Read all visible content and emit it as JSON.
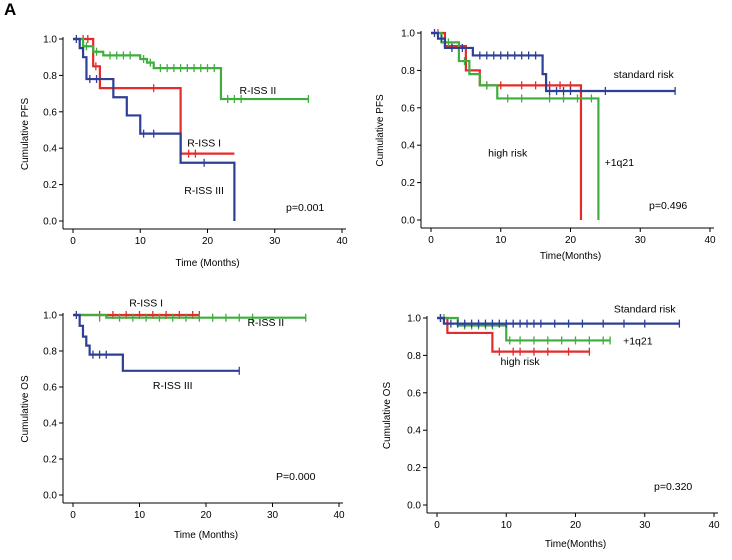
{
  "panel_label": "A",
  "colors": {
    "red": "#e32b2b",
    "green": "#3fae3f",
    "blue": "#2e3f96",
    "axis": "#000000"
  },
  "chart_data": [
    {
      "id": "pfs-riss",
      "type": "line",
      "step": true,
      "ylabel": "Cumulative PFS",
      "xlabel": "Time (Months)",
      "xlim": [
        0,
        40
      ],
      "ylim": [
        0,
        1
      ],
      "xticks": [
        0,
        10,
        20,
        30,
        40
      ],
      "yticks": [
        0.0,
        0.2,
        0.4,
        0.6,
        0.8,
        1.0
      ],
      "pvalue": "p=0.001",
      "series": [
        {
          "name": "R-ISS I",
          "color": "red",
          "x": [
            0,
            3,
            4,
            16,
            24
          ],
          "y": [
            1.0,
            0.85,
            0.73,
            0.37,
            0.37
          ],
          "end": 18.5,
          "censor": [
            [
              1.5,
              1.0
            ],
            [
              2.2,
              1.0
            ],
            [
              3.4,
              0.85
            ],
            [
              12,
              0.73
            ],
            [
              17.2,
              0.37
            ],
            [
              18.2,
              0.37
            ]
          ]
        },
        {
          "name": "R-ISS II",
          "color": "green",
          "x": [
            0,
            1.5,
            3,
            4.5,
            10,
            11,
            12,
            22
          ],
          "y": [
            1.0,
            0.96,
            0.93,
            0.91,
            0.89,
            0.87,
            0.84,
            0.67
          ],
          "end": 35,
          "censor": [
            [
              2,
              0.96
            ],
            [
              3.5,
              0.93
            ],
            [
              5.5,
              0.91
            ],
            [
              6.5,
              0.91
            ],
            [
              7.5,
              0.91
            ],
            [
              8.5,
              0.91
            ],
            [
              10.5,
              0.89
            ],
            [
              11.5,
              0.87
            ],
            [
              13,
              0.84
            ],
            [
              14,
              0.84
            ],
            [
              15,
              0.84
            ],
            [
              16,
              0.84
            ],
            [
              17,
              0.84
            ],
            [
              18,
              0.84
            ],
            [
              19,
              0.84
            ],
            [
              20,
              0.84
            ],
            [
              21,
              0.84
            ],
            [
              23,
              0.67
            ],
            [
              24,
              0.67
            ],
            [
              25,
              0.67
            ],
            [
              35,
              0.67
            ]
          ]
        },
        {
          "name": "R-ISS III",
          "color": "blue",
          "x": [
            0,
            1,
            1.5,
            2,
            6,
            8,
            10,
            16,
            24
          ],
          "y": [
            1.0,
            0.95,
            0.9,
            0.78,
            0.68,
            0.58,
            0.48,
            0.32,
            0.0
          ],
          "end": 24,
          "censor": [
            [
              0.5,
              1.0
            ],
            [
              2.5,
              0.78
            ],
            [
              3.5,
              0.78
            ],
            [
              10.5,
              0.48
            ],
            [
              12,
              0.48
            ],
            [
              19.5,
              0.32
            ]
          ]
        }
      ],
      "labels": [
        {
          "text": "R-ISS II",
          "x": 27.5,
          "y": 0.72
        },
        {
          "text": "R-ISS I",
          "x": 19.5,
          "y": 0.43
        },
        {
          "text": "R-ISS III",
          "x": 19.5,
          "y": 0.17
        }
      ]
    },
    {
      "id": "pfs-1q21",
      "type": "line",
      "step": true,
      "ylabel": "Cumulative PFS",
      "xlabel": "Time(Months)",
      "xlim": [
        0,
        40
      ],
      "ylim": [
        0,
        1
      ],
      "xticks": [
        0,
        10,
        20,
        30,
        40
      ],
      "yticks": [
        0.0,
        0.2,
        0.4,
        0.6,
        0.8,
        1.0
      ],
      "pvalue": "p=0.496",
      "series": [
        {
          "name": "high risk",
          "color": "red",
          "x": [
            0,
            2,
            5,
            7,
            21.5
          ],
          "y": [
            1.0,
            0.93,
            0.8,
            0.72,
            0.0
          ],
          "end": 21.5,
          "censor": [
            [
              1,
              1.0
            ],
            [
              3,
              0.93
            ],
            [
              8,
              0.72
            ],
            [
              10,
              0.72
            ],
            [
              13,
              0.72
            ],
            [
              15,
              0.72
            ],
            [
              17,
              0.72
            ],
            [
              18.5,
              0.72
            ],
            [
              20,
              0.72
            ]
          ]
        },
        {
          "name": "+1q21",
          "color": "green",
          "x": [
            0,
            1.5,
            4,
            5.5,
            7,
            9.5,
            24
          ],
          "y": [
            1.0,
            0.95,
            0.85,
            0.78,
            0.72,
            0.65,
            0.0
          ],
          "end": 24,
          "censor": [
            [
              2.5,
              0.95
            ],
            [
              4.8,
              0.85
            ],
            [
              8,
              0.72
            ],
            [
              11,
              0.65
            ],
            [
              13,
              0.65
            ],
            [
              17,
              0.65
            ],
            [
              19,
              0.65
            ],
            [
              21,
              0.65
            ],
            [
              23,
              0.65
            ]
          ]
        },
        {
          "name": "standard risk",
          "color": "blue",
          "x": [
            0,
            1,
            2,
            6,
            16,
            16.5
          ],
          "y": [
            1.0,
            0.97,
            0.92,
            0.88,
            0.78,
            0.69
          ],
          "end": 35,
          "censor": [
            [
              0.5,
              1.0
            ],
            [
              1.5,
              0.97
            ],
            [
              3,
              0.92
            ],
            [
              4.5,
              0.92
            ],
            [
              7,
              0.88
            ],
            [
              8,
              0.88
            ],
            [
              9,
              0.88
            ],
            [
              10,
              0.88
            ],
            [
              11,
              0.88
            ],
            [
              12,
              0.88
            ],
            [
              13,
              0.88
            ],
            [
              14,
              0.88
            ],
            [
              15,
              0.88
            ],
            [
              17,
              0.69
            ],
            [
              18,
              0.69
            ],
            [
              19,
              0.69
            ],
            [
              20,
              0.69
            ],
            [
              25,
              0.69
            ],
            [
              35,
              0.69
            ]
          ]
        }
      ],
      "labels": [
        {
          "text": "standard risk",
          "x": 30.5,
          "y": 0.78
        },
        {
          "text": "high risk",
          "x": 11,
          "y": 0.36
        },
        {
          "text": "+1q21",
          "x": 27,
          "y": 0.31
        }
      ]
    },
    {
      "id": "os-riss",
      "type": "line",
      "step": true,
      "ylabel": "Cumulative OS",
      "xlabel": "Time (Months)",
      "xlim": [
        0,
        40
      ],
      "ylim": [
        0,
        1
      ],
      "xticks": [
        0,
        10,
        20,
        30,
        40
      ],
      "yticks": [
        0.0,
        0.2,
        0.4,
        0.6,
        0.8,
        1.0
      ],
      "pvalue": "P=0.000",
      "series": [
        {
          "name": "R-ISS I",
          "color": "red",
          "x": [
            0
          ],
          "y": [
            1.0
          ],
          "end": 19,
          "censor": [
            [
              4,
              1.0
            ],
            [
              6,
              1.0
            ],
            [
              8,
              1.0
            ],
            [
              10,
              1.0
            ],
            [
              12,
              1.0
            ],
            [
              14,
              1.0
            ],
            [
              16,
              1.0
            ],
            [
              18,
              1.0
            ],
            [
              19,
              1.0
            ]
          ]
        },
        {
          "name": "R-ISS II",
          "color": "green",
          "x": [
            0,
            5
          ],
          "y": [
            1.0,
            0.985
          ],
          "end": 35,
          "censor": [
            [
              4,
              0.985
            ],
            [
              7,
              0.985
            ],
            [
              9,
              0.985
            ],
            [
              11,
              0.985
            ],
            [
              13,
              0.985
            ],
            [
              15,
              0.985
            ],
            [
              17,
              0.985
            ],
            [
              19,
              0.985
            ],
            [
              21,
              0.985
            ],
            [
              23,
              0.985
            ],
            [
              25,
              0.985
            ],
            [
              27,
              0.985
            ],
            [
              35,
              0.985
            ]
          ]
        },
        {
          "name": "R-ISS III",
          "color": "blue",
          "x": [
            0,
            1,
            1.5,
            2,
            2.5,
            7.5
          ],
          "y": [
            1.0,
            0.94,
            0.88,
            0.83,
            0.78,
            0.69
          ],
          "end": 25,
          "censor": [
            [
              0.5,
              1.0
            ],
            [
              3,
              0.78
            ],
            [
              4,
              0.78
            ],
            [
              5,
              0.78
            ],
            [
              25,
              0.69
            ]
          ]
        }
      ],
      "labels": [
        {
          "text": "R-ISS I",
          "x": 11,
          "y": 1.07
        },
        {
          "text": "R-ISS II",
          "x": 29,
          "y": 0.96
        },
        {
          "text": "R-ISS III",
          "x": 15,
          "y": 0.61
        }
      ]
    },
    {
      "id": "os-1q21",
      "type": "line",
      "step": true,
      "ylabel": "Cumulative OS",
      "xlabel": "Time(Months)",
      "xlim": [
        0,
        40
      ],
      "ylim": [
        0,
        1
      ],
      "xticks": [
        0,
        10,
        20,
        30,
        40
      ],
      "yticks": [
        0.0,
        0.2,
        0.4,
        0.6,
        0.8,
        1.0
      ],
      "pvalue": "p=0.320",
      "series": [
        {
          "name": "high risk",
          "color": "red",
          "x": [
            0,
            1.5,
            8
          ],
          "y": [
            1.0,
            0.92,
            0.82
          ],
          "end": 22,
          "censor": [
            [
              0.5,
              1.0
            ],
            [
              9,
              0.82
            ],
            [
              11,
              0.82
            ],
            [
              12,
              0.82
            ],
            [
              14,
              0.82
            ],
            [
              16,
              0.82
            ],
            [
              19,
              0.82
            ],
            [
              22,
              0.82
            ]
          ]
        },
        {
          "name": "+1q21",
          "color": "green",
          "x": [
            0,
            3,
            10
          ],
          "y": [
            1.0,
            0.96,
            0.88
          ],
          "end": 25,
          "censor": [
            [
              1,
              1.0
            ],
            [
              4,
              0.96
            ],
            [
              5,
              0.96
            ],
            [
              6,
              0.96
            ],
            [
              7,
              0.96
            ],
            [
              8,
              0.96
            ],
            [
              10.5,
              0.88
            ],
            [
              12,
              0.88
            ],
            [
              14,
              0.88
            ],
            [
              16,
              0.88
            ],
            [
              18,
              0.88
            ],
            [
              20,
              0.88
            ],
            [
              22,
              0.88
            ],
            [
              24,
              0.88
            ],
            [
              25,
              0.88
            ]
          ]
        },
        {
          "name": "Standard risk",
          "color": "blue",
          "x": [
            0,
            1
          ],
          "y": [
            1.0,
            0.97
          ],
          "end": 35,
          "censor": [
            [
              0.5,
              1.0
            ],
            [
              2,
              0.97
            ],
            [
              3,
              0.97
            ],
            [
              4,
              0.97
            ],
            [
              5,
              0.97
            ],
            [
              6,
              0.97
            ],
            [
              7,
              0.97
            ],
            [
              8,
              0.97
            ],
            [
              9,
              0.97
            ],
            [
              10,
              0.97
            ],
            [
              11,
              0.97
            ],
            [
              12,
              0.97
            ],
            [
              13,
              0.97
            ],
            [
              14,
              0.97
            ],
            [
              15,
              0.97
            ],
            [
              17,
              0.97
            ],
            [
              19,
              0.97
            ],
            [
              21,
              0.97
            ],
            [
              24,
              0.97
            ],
            [
              27,
              0.97
            ],
            [
              30,
              0.97
            ],
            [
              35,
              0.97
            ]
          ]
        }
      ],
      "labels": [
        {
          "text": "Standard risk",
          "x": 30,
          "y": 1.05
        },
        {
          "text": "+1q21",
          "x": 29,
          "y": 0.88
        },
        {
          "text": "high risk",
          "x": 12,
          "y": 0.77
        }
      ]
    }
  ]
}
